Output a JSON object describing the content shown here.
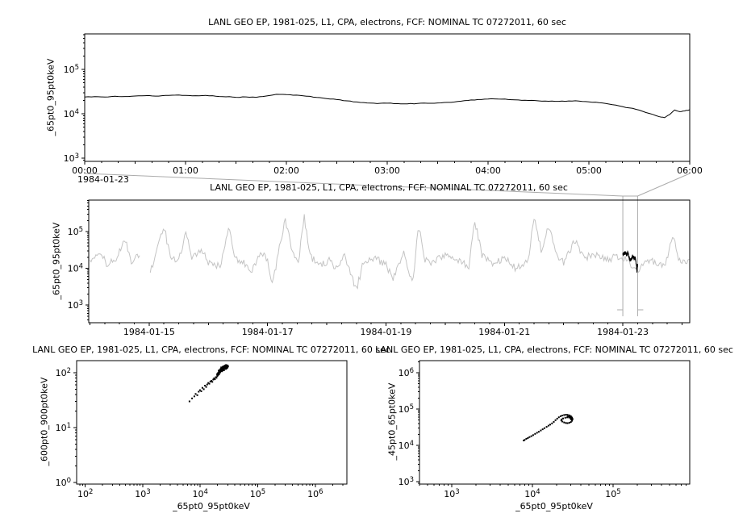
{
  "colors": {
    "background": "#ffffff",
    "axis": "#000000",
    "active_series": "#000000",
    "context_series": "#c4c4c4",
    "connector": "#ababab"
  },
  "chart_data": [
    {
      "id": "top",
      "type": "line",
      "title": "LANL GEO EP, 1981-025, L1, CPA, electrons, FCF: NOMINAL TC 07272011, 60 sec",
      "ylabel": "_65pt0_95pt0keV",
      "xlabel": "",
      "context_date": "1984-01-23",
      "xscale": "linear",
      "yscale": "log",
      "xlim": [
        0,
        6
      ],
      "ylim_log": [
        2.93,
        5.8
      ],
      "xticks": [
        {
          "v": 0,
          "label": "00:00"
        },
        {
          "v": 1,
          "label": "01:00"
        },
        {
          "v": 2,
          "label": "02:00"
        },
        {
          "v": 3,
          "label": "03:00"
        },
        {
          "v": 4,
          "label": "04:00"
        },
        {
          "v": 5,
          "label": "05:00"
        },
        {
          "v": 6,
          "label": "06:00"
        }
      ],
      "xmedium_step": 0.5,
      "xminor_step": 0.1666667,
      "yticks_decades": [
        3,
        4,
        5
      ],
      "series": {
        "name": "_65pt0_95pt0keV",
        "color": "#000000",
        "points": [
          [
            0,
            24000
          ],
          [
            0.1,
            24500
          ],
          [
            0.2,
            24000
          ],
          [
            0.3,
            25000
          ],
          [
            0.4,
            24600
          ],
          [
            0.5,
            25200
          ],
          [
            0.6,
            25600
          ],
          [
            0.7,
            25100
          ],
          [
            0.8,
            26000
          ],
          [
            0.9,
            26400
          ],
          [
            1,
            26000
          ],
          [
            1.1,
            25600
          ],
          [
            1.2,
            26100
          ],
          [
            1.3,
            25000
          ],
          [
            1.4,
            24200
          ],
          [
            1.5,
            23600
          ],
          [
            1.6,
            24100
          ],
          [
            1.7,
            23600
          ],
          [
            1.8,
            25200
          ],
          [
            1.9,
            27500
          ],
          [
            2,
            27000
          ],
          [
            2.1,
            26400
          ],
          [
            2.2,
            25000
          ],
          [
            2.3,
            23400
          ],
          [
            2.4,
            22000
          ],
          [
            2.5,
            21000
          ],
          [
            2.6,
            19600
          ],
          [
            2.7,
            18500
          ],
          [
            2.8,
            17600
          ],
          [
            2.9,
            17000
          ],
          [
            3,
            17400
          ],
          [
            3.1,
            17000
          ],
          [
            3.2,
            16800
          ],
          [
            3.3,
            17100
          ],
          [
            3.4,
            17300
          ],
          [
            3.5,
            17600
          ],
          [
            3.6,
            18100
          ],
          [
            3.7,
            19000
          ],
          [
            3.8,
            20000
          ],
          [
            3.9,
            21000
          ],
          [
            4,
            21600
          ],
          [
            4.1,
            21500
          ],
          [
            4.2,
            21000
          ],
          [
            4.3,
            20500
          ],
          [
            4.4,
            20000
          ],
          [
            4.5,
            19600
          ],
          [
            4.6,
            19200
          ],
          [
            4.7,
            19100
          ],
          [
            4.8,
            19500
          ],
          [
            4.9,
            19400
          ],
          [
            5,
            18600
          ],
          [
            5.1,
            17900
          ],
          [
            5.2,
            16600
          ],
          [
            5.3,
            15100
          ],
          [
            5.4,
            13600
          ],
          [
            5.5,
            12100
          ],
          [
            5.6,
            10200
          ],
          [
            5.7,
            8600
          ],
          [
            5.75,
            8200
          ],
          [
            5.8,
            9600
          ],
          [
            5.85,
            12200
          ],
          [
            5.9,
            11200
          ],
          [
            5.95,
            11600
          ],
          [
            6,
            12400
          ]
        ]
      }
    },
    {
      "id": "context",
      "type": "line",
      "title": "LANL GEO EP, 1981-025, L1, CPA, electrons, FCF: NOMINAL TC 07272011, 60 sec",
      "ylabel": "_65pt0_95pt0keV",
      "xlabel": "",
      "xscale": "linear",
      "yscale": "log",
      "xlim": [
        13.98,
        24.13
      ],
      "ylim_log": [
        2.52,
        5.86
      ],
      "xticks": [
        {
          "v": 15,
          "label": "1984-01-15"
        },
        {
          "v": 17,
          "label": "1984-01-17"
        },
        {
          "v": 19,
          "label": "1984-01-19"
        },
        {
          "v": 21,
          "label": "1984-01-21"
        },
        {
          "v": 23,
          "label": "1984-01-23"
        }
      ],
      "xmedium_step": 1,
      "xminor_step": 0.25,
      "yticks_decades": [
        3,
        4,
        5
      ],
      "context_series": {
        "color": "#c4c4c4",
        "noise_log": 0.1,
        "sample_step": 0.02,
        "gaps": [
          [
            14.84,
            15.0
          ]
        ],
        "anchors": [
          [
            14.0,
            16000
          ],
          [
            14.15,
            30000
          ],
          [
            14.3,
            12000
          ],
          [
            14.45,
            20000
          ],
          [
            14.6,
            60000
          ],
          [
            14.7,
            14000
          ],
          [
            14.82,
            24000
          ],
          [
            15.02,
            9000
          ],
          [
            15.1,
            20000
          ],
          [
            15.25,
            150000
          ],
          [
            15.35,
            22000
          ],
          [
            15.5,
            17000
          ],
          [
            15.62,
            90000
          ],
          [
            15.72,
            20000
          ],
          [
            15.9,
            30000
          ],
          [
            16.0,
            14000
          ],
          [
            16.2,
            11000
          ],
          [
            16.35,
            130000
          ],
          [
            16.45,
            18000
          ],
          [
            16.6,
            14000
          ],
          [
            16.72,
            8000
          ],
          [
            16.9,
            30000
          ],
          [
            17.0,
            17000
          ],
          [
            17.08,
            3500
          ],
          [
            17.18,
            24000
          ],
          [
            17.3,
            210000
          ],
          [
            17.42,
            28000
          ],
          [
            17.52,
            15000
          ],
          [
            17.62,
            260000
          ],
          [
            17.72,
            20000
          ],
          [
            17.9,
            12000
          ],
          [
            18.05,
            17000
          ],
          [
            18.15,
            9500
          ],
          [
            18.3,
            24000
          ],
          [
            18.5,
            2600
          ],
          [
            18.62,
            15000
          ],
          [
            18.8,
            20000
          ],
          [
            19.0,
            12000
          ],
          [
            19.12,
            5000
          ],
          [
            19.3,
            28000
          ],
          [
            19.45,
            4000
          ],
          [
            19.55,
            150000
          ],
          [
            19.65,
            18000
          ],
          [
            19.8,
            14000
          ],
          [
            20.0,
            24000
          ],
          [
            20.2,
            17000
          ],
          [
            20.4,
            11000
          ],
          [
            20.5,
            200000
          ],
          [
            20.62,
            24000
          ],
          [
            20.8,
            14000
          ],
          [
            21.0,
            19000
          ],
          [
            21.2,
            9500
          ],
          [
            21.4,
            17000
          ],
          [
            21.5,
            250000
          ],
          [
            21.62,
            30000
          ],
          [
            21.75,
            140000
          ],
          [
            21.87,
            24000
          ],
          [
            22.0,
            15000
          ],
          [
            22.2,
            60000
          ],
          [
            22.35,
            19000
          ],
          [
            22.5,
            25000
          ],
          [
            22.7,
            17000
          ],
          [
            22.9,
            21000
          ],
          [
            23.0,
            20000
          ],
          [
            23.1,
            15000
          ],
          [
            23.2,
            9000
          ],
          [
            23.27,
            6000
          ],
          [
            23.33,
            14000
          ],
          [
            23.5,
            15000
          ],
          [
            23.7,
            12000
          ],
          [
            23.85,
            70000
          ],
          [
            23.95,
            18000
          ],
          [
            24.13,
            15000
          ]
        ]
      },
      "highlight": {
        "source": "top",
        "day_start": 23.0,
        "hours_per_day": 24,
        "color": "#000000"
      },
      "zoom_box": {
        "day_start": 23.0,
        "day_end": 23.25
      }
    },
    {
      "id": "scatter-left",
      "type": "scatter",
      "title": "LANL GEO EP, 1981-025, L1, CPA, electrons, FCF: NOMINAL TC 07272011, 60 sec",
      "xlabel": "_65pt0_95pt0keV",
      "ylabel": "_600pt0_900pt0keV",
      "xscale": "log",
      "yscale": "log",
      "xlim_log": [
        1.85,
        6.55
      ],
      "ylim_log": [
        -0.03,
        2.22
      ],
      "xticks_decades": [
        2,
        3,
        4,
        5,
        6
      ],
      "yticks_decades": [
        0,
        1,
        2
      ],
      "points": [
        [
          6500,
          30
        ],
        [
          7200,
          34
        ],
        [
          7900,
          37
        ],
        [
          8300,
          41
        ],
        [
          8900,
          39
        ],
        [
          9400,
          45
        ],
        [
          9900,
          48
        ],
        [
          10400,
          46
        ],
        [
          10900,
          53
        ],
        [
          11500,
          50
        ],
        [
          12100,
          58
        ],
        [
          12700,
          55
        ],
        [
          13200,
          61
        ],
        [
          13800,
          65
        ],
        [
          14400,
          63
        ],
        [
          15000,
          69
        ],
        [
          15600,
          71
        ],
        [
          16200,
          68
        ],
        [
          16800,
          75
        ],
        [
          17400,
          79
        ],
        [
          18000,
          76
        ],
        [
          18600,
          83
        ],
        [
          19200,
          81
        ],
        [
          19600,
          92
        ],
        [
          19900,
          96
        ],
        [
          20200,
          90
        ],
        [
          20500,
          100
        ],
        [
          20800,
          95
        ],
        [
          21100,
          104
        ],
        [
          21400,
          99
        ],
        [
          21700,
          107
        ],
        [
          22000,
          103
        ],
        [
          22300,
          110
        ],
        [
          22600,
          106
        ],
        [
          22900,
          113
        ],
        [
          23200,
          109
        ],
        [
          23500,
          116
        ],
        [
          23800,
          112
        ],
        [
          24100,
          118
        ],
        [
          24400,
          114
        ],
        [
          24700,
          120
        ],
        [
          25000,
          117
        ],
        [
          25300,
          122
        ],
        [
          25600,
          119
        ],
        [
          25900,
          124
        ],
        [
          26200,
          121
        ],
        [
          26500,
          126
        ],
        [
          26800,
          123
        ],
        [
          27100,
          128
        ],
        [
          27400,
          125
        ],
        [
          27700,
          130
        ],
        [
          28000,
          127
        ],
        [
          28300,
          132
        ],
        [
          28600,
          129
        ],
        [
          28900,
          134
        ],
        [
          29300,
          131
        ],
        [
          29700,
          136
        ],
        [
          30100,
          133
        ],
        [
          24500,
          126
        ],
        [
          23600,
          122
        ],
        [
          22700,
          118
        ],
        [
          21800,
          113
        ],
        [
          20900,
          109
        ],
        [
          25400,
          129
        ],
        [
          26300,
          132
        ],
        [
          27200,
          135
        ],
        [
          28100,
          138
        ],
        [
          22100,
          101
        ],
        [
          24000,
          106
        ],
        [
          25900,
          111
        ],
        [
          27800,
          117
        ],
        [
          29600,
          123
        ],
        [
          23100,
          125
        ],
        [
          25000,
          130
        ],
        [
          26900,
          135
        ],
        [
          21200,
          93
        ],
        [
          19800,
          87
        ],
        [
          20300,
          91
        ],
        [
          28700,
          120
        ],
        [
          29900,
          127
        ],
        [
          30400,
          130
        ],
        [
          26000,
          115
        ],
        [
          24800,
          111
        ]
      ]
    },
    {
      "id": "scatter-right",
      "type": "scatter",
      "title": "LANL GEO EP, 1981-025, L1, CPA, electrons, FCF: NOMINAL TC 07272011, 60 sec",
      "xlabel": "_65pt0_95pt0keV",
      "ylabel": "_45pt0_65pt0keV",
      "xscale": "log",
      "yscale": "log",
      "xlim_log": [
        2.6,
        5.95
      ],
      "ylim_log": [
        2.93,
        6.33
      ],
      "xticks_decades": [
        3,
        4,
        5
      ],
      "yticks_decades": [
        3,
        4,
        5,
        6
      ],
      "points": [
        [
          7800,
          13500
        ],
        [
          8000,
          14000
        ],
        [
          8400,
          15000
        ],
        [
          8800,
          15800
        ],
        [
          9200,
          16800
        ],
        [
          9700,
          17800
        ],
        [
          10200,
          19000
        ],
        [
          10800,
          20500
        ],
        [
          11400,
          22000
        ],
        [
          12000,
          23500
        ],
        [
          12700,
          25500
        ],
        [
          13400,
          27500
        ],
        [
          14100,
          29500
        ],
        [
          15000,
          32000
        ],
        [
          15800,
          34500
        ],
        [
          16600,
          37000
        ],
        [
          17500,
          40000
        ],
        [
          18400,
          44000
        ],
        [
          19300,
          49000
        ],
        [
          20300,
          54000
        ],
        [
          21300,
          59000
        ],
        [
          22400,
          63000
        ],
        [
          23500,
          66000
        ],
        [
          24700,
          68000
        ],
        [
          26000,
          69000
        ],
        [
          27300,
          68500
        ],
        [
          28700,
          66500
        ],
        [
          30000,
          63000
        ],
        [
          31000,
          58000
        ],
        [
          31500,
          52000
        ],
        [
          31000,
          47000
        ],
        [
          30000,
          43500
        ],
        [
          28700,
          41500
        ],
        [
          27300,
          40500
        ],
        [
          26000,
          41000
        ],
        [
          24700,
          42500
        ],
        [
          23500,
          45000
        ],
        [
          22800,
          48000
        ],
        [
          23000,
          51500
        ],
        [
          24000,
          54500
        ],
        [
          25500,
          57000
        ],
        [
          27000,
          58500
        ],
        [
          28500,
          58000
        ],
        [
          29800,
          56000
        ],
        [
          30800,
          53000
        ],
        [
          29500,
          60000
        ],
        [
          30200,
          59000
        ],
        [
          30800,
          57500
        ],
        [
          29000,
          61500
        ],
        [
          28000,
          62500
        ],
        [
          30500,
          55500
        ],
        [
          31200,
          54000
        ],
        [
          29800,
          58500
        ],
        [
          28500,
          60500
        ],
        [
          27500,
          61500
        ],
        [
          30000,
          52000
        ],
        [
          30700,
          50500
        ],
        [
          29200,
          63500
        ]
      ]
    }
  ]
}
